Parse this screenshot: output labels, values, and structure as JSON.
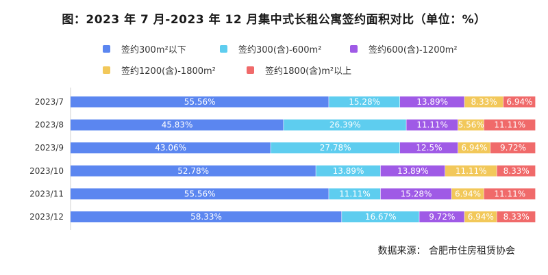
{
  "title": "图：2023 年 7 月-2023 年 12 月集中式长租公寓签约面积对比（单位：%）",
  "source": "数据来源：  合肥市住房租赁协会",
  "chart_data": {
    "type": "bar",
    "orientation": "horizontal",
    "stacked": true,
    "unit": "%",
    "categories": [
      "2023/7",
      "2023/8",
      "2023/9",
      "2023/10",
      "2023/11",
      "2023/12"
    ],
    "series": [
      {
        "name": "签约300m²以下",
        "color": "#5b86f0",
        "values": [
          55.56,
          45.83,
          43.06,
          52.78,
          55.56,
          58.33
        ]
      },
      {
        "name": "签约300(含)-600m²",
        "color": "#5ecdef",
        "values": [
          15.28,
          26.39,
          27.78,
          13.89,
          11.11,
          16.67
        ]
      },
      {
        "name": "签约600(含)-1200m²",
        "color": "#9f5ae6",
        "values": [
          13.89,
          11.11,
          12.5,
          13.89,
          15.28,
          9.72
        ]
      },
      {
        "name": "签约1200(含)-1800m²",
        "color": "#f2c85a",
        "values": [
          8.33,
          5.56,
          6.94,
          11.11,
          6.94,
          6.94
        ]
      },
      {
        "name": "签约1800(含)m²以上",
        "color": "#f06a6a",
        "values": [
          6.94,
          11.11,
          9.72,
          8.33,
          11.11,
          8.33
        ]
      }
    ],
    "data_labels": [
      [
        "55.56%",
        "15.28%",
        "13.89%",
        "8.33%",
        "6.94%"
      ],
      [
        "45.83%",
        "26.39%",
        "11.11%",
        "5.56%",
        "11.11%"
      ],
      [
        "43.06%",
        "27.78%",
        "12.5%",
        "6.94%",
        "9.72%"
      ],
      [
        "52.78%",
        "13.89%",
        "13.89%",
        "11.11%",
        "8.33%"
      ],
      [
        "55.56%",
        "11.11%",
        "15.28%",
        "6.94%",
        "11.11%"
      ],
      [
        "58.33%",
        "16.67%",
        "9.72%",
        "6.94%",
        "8.33%"
      ]
    ],
    "legend_position": "top"
  }
}
